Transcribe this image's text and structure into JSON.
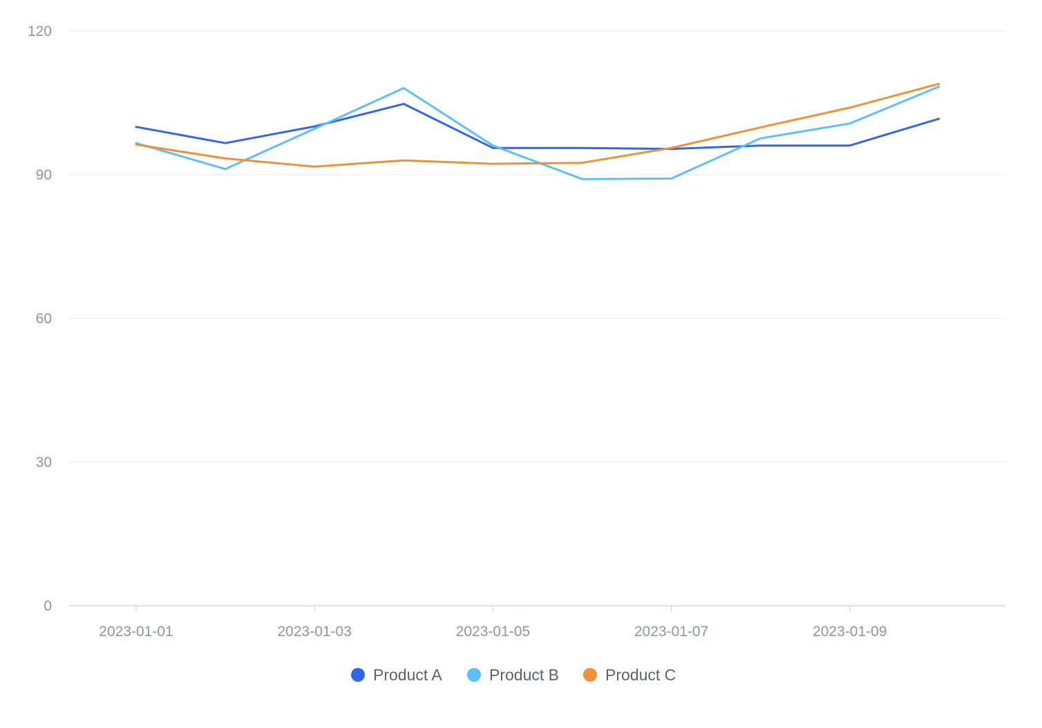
{
  "chart_data": {
    "type": "line",
    "title": "",
    "xlabel": "",
    "ylabel": "",
    "x": [
      "2023-01-01",
      "2023-01-02",
      "2023-01-03",
      "2023-01-04",
      "2023-01-05",
      "2023-01-06",
      "2023-01-07",
      "2023-01-08",
      "2023-01-09",
      "2023-01-10"
    ],
    "x_tick_labels": [
      "2023-01-01",
      "2023-01-03",
      "2023-01-05",
      "2023-01-07",
      "2023-01-09"
    ],
    "y_ticks": [
      0,
      30,
      60,
      90,
      120
    ],
    "ylim": [
      0,
      120
    ],
    "grid": true,
    "legend_position": "bottom-center",
    "series": [
      {
        "name": "Product A",
        "color": "#3366e6",
        "values": [
          100.0,
          96.6,
          100.1,
          104.8,
          95.6,
          95.6,
          95.4,
          96.1,
          96.1,
          101.7
        ]
      },
      {
        "name": "Product B",
        "color": "#5cbff5",
        "values": [
          96.6,
          91.2,
          99.6,
          108.1,
          96.1,
          89.1,
          89.2,
          97.6,
          100.7,
          108.4
        ]
      },
      {
        "name": "Product C",
        "color": "#f0913a",
        "values": [
          96.3,
          93.4,
          91.7,
          93.0,
          92.3,
          92.5,
          95.6,
          99.9,
          104.0,
          109.0
        ]
      }
    ]
  }
}
